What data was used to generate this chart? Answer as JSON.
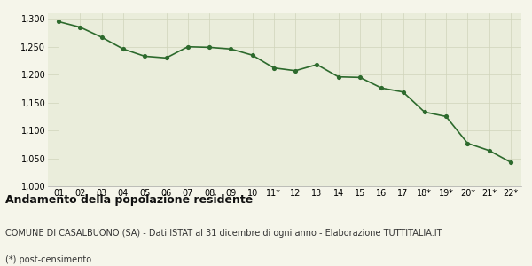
{
  "x_labels": [
    "01",
    "02",
    "03",
    "04",
    "05",
    "06",
    "07",
    "08",
    "09",
    "10",
    "11*",
    "12",
    "13",
    "14",
    "15",
    "16",
    "17",
    "18*",
    "19*",
    "20*",
    "21*",
    "22*"
  ],
  "y_values": [
    1295,
    1285,
    1267,
    1246,
    1233,
    1230,
    1250,
    1249,
    1246,
    1235,
    1212,
    1207,
    1218,
    1196,
    1195,
    1176,
    1169,
    1133,
    1125,
    1077,
    1064,
    1043
  ],
  "line_color": "#2d6a2d",
  "fill_color": "#eaeddb",
  "marker_color": "#2d6a2d",
  "background_color": "#f5f5ea",
  "grid_color": "#d0d4bb",
  "ylim": [
    1000,
    1310
  ],
  "yticks": [
    1000,
    1050,
    1100,
    1150,
    1200,
    1250,
    1300
  ],
  "title": "Andamento della popolazione residente",
  "subtitle": "COMUNE DI CASALBUONO (SA) - Dati ISTAT al 31 dicembre di ogni anno - Elaborazione TUTTITALIA.IT",
  "footnote": "(*) post-censimento",
  "title_fontsize": 9,
  "subtitle_fontsize": 7,
  "footnote_fontsize": 7,
  "tick_fontsize": 7
}
